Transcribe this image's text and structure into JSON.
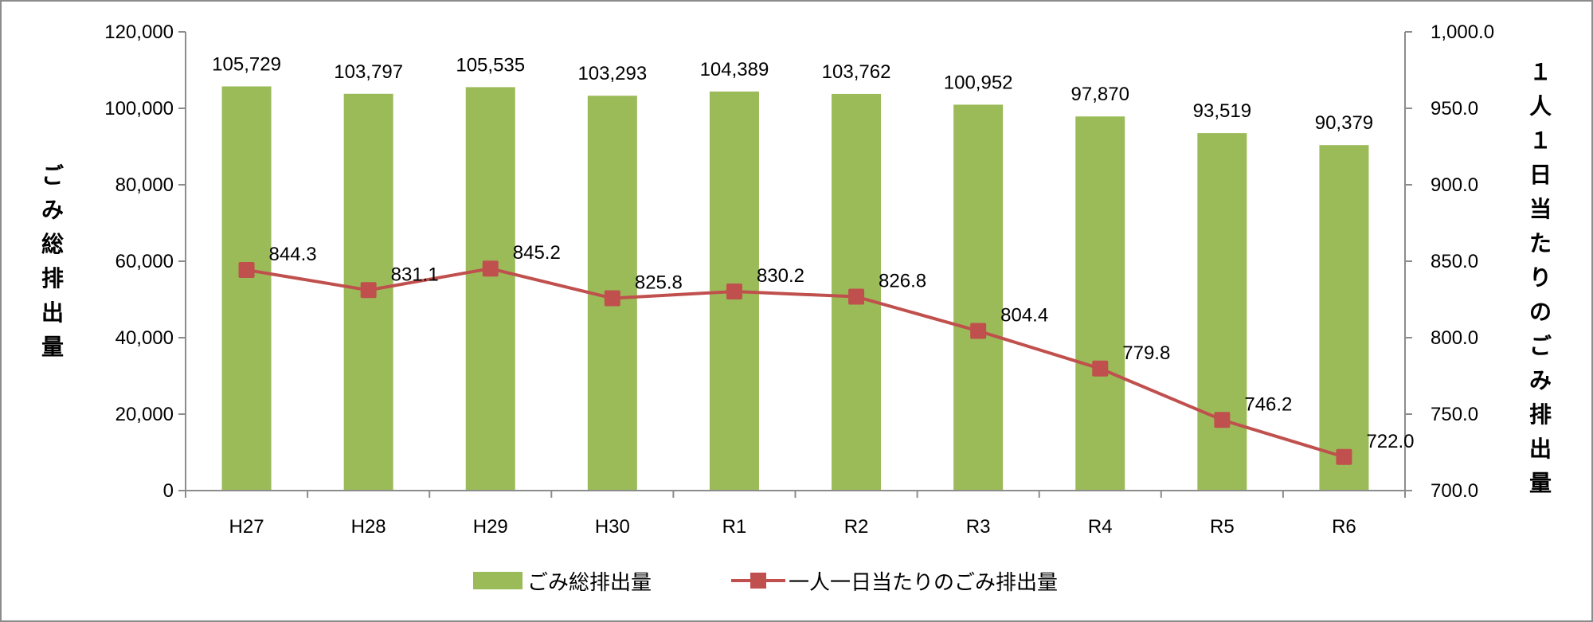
{
  "chart_data": {
    "type": "bar+line",
    "categories": [
      "H27",
      "H28",
      "H29",
      "H30",
      "R1",
      "R2",
      "R3",
      "R4",
      "R5",
      "R6"
    ],
    "series": [
      {
        "name": "ごみ総排出量",
        "type": "bar",
        "axis": "left",
        "color": "#9BBB59",
        "values": [
          105729,
          103797,
          105535,
          103293,
          104389,
          103762,
          100952,
          97870,
          93519,
          90379
        ],
        "labels": [
          "105,729",
          "103,797",
          "105,535",
          "103,293",
          "104,389",
          "103,762",
          "100,952",
          "97,870",
          "93,519",
          "90,379"
        ]
      },
      {
        "name": "一人一日当たりのごみ排出量",
        "type": "line",
        "axis": "right",
        "color": "#C0504D",
        "values": [
          844.3,
          831.1,
          845.2,
          825.8,
          830.2,
          826.8,
          804.4,
          779.8,
          746.2,
          722.0
        ],
        "labels": [
          "844.3",
          "831.1",
          "845.2",
          "825.8",
          "830.2",
          "826.8",
          "804.4",
          "779.8",
          "746.2",
          "722.0"
        ]
      }
    ],
    "ylabel": "ごみ総排出量",
    "ylabel_chars": [
      "ご",
      "み",
      "総",
      "排",
      "出",
      "量"
    ],
    "ylim": [
      0,
      120000
    ],
    "yticks": [
      "0",
      "20,000",
      "40,000",
      "60,000",
      "80,000",
      "100,000",
      "120,000"
    ],
    "y2label": "１人１日当たりのごみ排出量",
    "y2label_chars": [
      "１",
      "人",
      "１",
      "日",
      "当",
      "た",
      "り",
      "の",
      "ご",
      "み",
      "排",
      "出",
      "量"
    ],
    "y2lim": [
      700,
      1000
    ],
    "y2ticks": [
      "700.0",
      "750.0",
      "800.0",
      "850.0",
      "900.0",
      "950.0",
      "1,000.0"
    ],
    "legend_position": "bottom",
    "grid": false
  }
}
